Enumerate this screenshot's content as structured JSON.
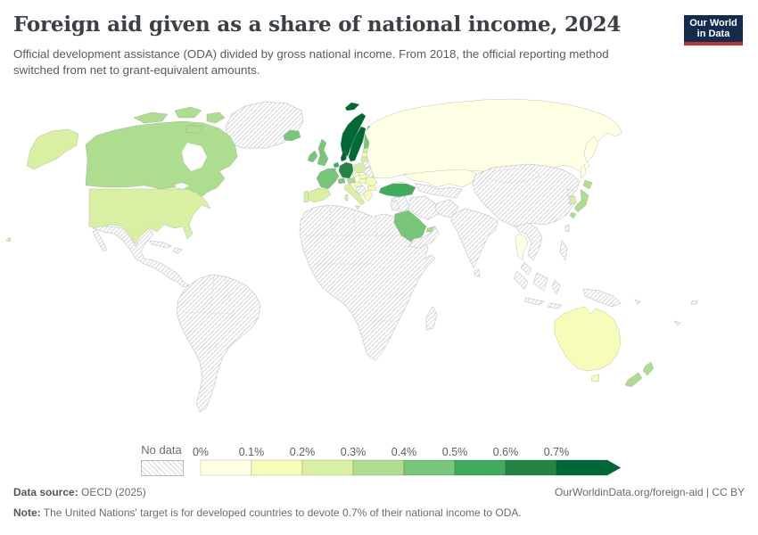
{
  "header": {
    "title": "Foreign aid given as a share of national income, 2024",
    "subtitle": "Official development assistance (ODA) divided by gross national income. From 2018, the official reporting method switched from net to grant-equivalent amounts.",
    "logo": {
      "line1": "Our World",
      "line2": "in Data"
    }
  },
  "legend": {
    "no_data_label": "No data",
    "tick_labels": [
      "0%",
      "0.1%",
      "0.2%",
      "0.3%",
      "0.4%",
      "0.5%",
      "0.6%",
      "0.7%"
    ],
    "colors": [
      "#ffffe5",
      "#f7fcb9",
      "#d9f0a3",
      "#addd8e",
      "#78c679",
      "#41ab5d",
      "#238443",
      "#006837"
    ],
    "bin_labels": [
      "0-0.1%",
      "0.1-0.2%",
      "0.2-0.3%",
      "0.3-0.4%",
      "0.4-0.5%",
      "0.5-0.6%",
      "0.6-0.7%",
      "0.7%+"
    ]
  },
  "map": {
    "regions": [
      {
        "id": "russia",
        "name": "Russia",
        "bin": 0
      },
      {
        "id": "kazakhstan",
        "name": "Kazakhstan",
        "bin": 0
      },
      {
        "id": "thailand",
        "name": "Thailand",
        "bin": 0
      },
      {
        "id": "australia",
        "name": "Australia",
        "bin": 1
      },
      {
        "id": "czechia",
        "name": "Czechia",
        "bin": 1
      },
      {
        "id": "slovakia",
        "name": "Slovakia",
        "bin": 1
      },
      {
        "id": "hungary",
        "name": "Hungary",
        "bin": 1
      },
      {
        "id": "croatia-slovenia",
        "name": "Croatia/Slovenia",
        "bin": 1
      },
      {
        "id": "romania",
        "name": "Romania",
        "bin": 1
      },
      {
        "id": "bulgaria",
        "name": "Bulgaria",
        "bin": 1
      },
      {
        "id": "greece",
        "name": "Greece",
        "bin": 1
      },
      {
        "id": "latvia",
        "name": "Latvia",
        "bin": 1
      },
      {
        "id": "usa",
        "name": "United States",
        "bin": 2
      },
      {
        "id": "spain",
        "name": "Spain",
        "bin": 2
      },
      {
        "id": "portugal",
        "name": "Portugal",
        "bin": 2
      },
      {
        "id": "italy",
        "name": "Italy",
        "bin": 2
      },
      {
        "id": "poland",
        "name": "Poland",
        "bin": 2
      },
      {
        "id": "south-korea",
        "name": "South Korea",
        "bin": 2
      },
      {
        "id": "estonia",
        "name": "Estonia",
        "bin": 2
      },
      {
        "id": "lithuania",
        "name": "Lithuania",
        "bin": 2
      },
      {
        "id": "canada",
        "name": "Canada",
        "bin": 3
      },
      {
        "id": "japan",
        "name": "Japan",
        "bin": 3
      },
      {
        "id": "new-zealand",
        "name": "New Zealand",
        "bin": 3
      },
      {
        "id": "austria",
        "name": "Austria",
        "bin": 3
      },
      {
        "id": "uae",
        "name": "United Arab Emirates",
        "bin": 3
      },
      {
        "id": "france",
        "name": "France",
        "bin": 4
      },
      {
        "id": "united-kingdom",
        "name": "United Kingdom",
        "bin": 4
      },
      {
        "id": "ireland",
        "name": "Ireland",
        "bin": 4
      },
      {
        "id": "iceland",
        "name": "Iceland",
        "bin": 4
      },
      {
        "id": "finland",
        "name": "Finland",
        "bin": 4
      },
      {
        "id": "belgium",
        "name": "Belgium",
        "bin": 4
      },
      {
        "id": "switzerland",
        "name": "Switzerland",
        "bin": 4
      },
      {
        "id": "saudi-arabia",
        "name": "Saudi Arabia",
        "bin": 4
      },
      {
        "id": "turkey",
        "name": "Turkey",
        "bin": 5
      },
      {
        "id": "netherlands",
        "name": "Netherlands",
        "bin": 5
      },
      {
        "id": "germany",
        "name": "Germany",
        "bin": 6
      },
      {
        "id": "norway",
        "name": "Norway",
        "bin": 7
      },
      {
        "id": "sweden",
        "name": "Sweden",
        "bin": 7
      },
      {
        "id": "denmark",
        "name": "Denmark",
        "bin": 7
      },
      {
        "id": "greenland",
        "name": "Greenland",
        "bin": null
      },
      {
        "id": "mexico-central-america",
        "name": "Mexico & Central America",
        "bin": null
      },
      {
        "id": "caribbean",
        "name": "Caribbean",
        "bin": null
      },
      {
        "id": "south-america",
        "name": "South America",
        "bin": null
      },
      {
        "id": "africa",
        "name": "Africa",
        "bin": null
      },
      {
        "id": "madagascar",
        "name": "Madagascar",
        "bin": null
      },
      {
        "id": "belarus",
        "name": "Belarus",
        "bin": null
      },
      {
        "id": "ukraine",
        "name": "Ukraine",
        "bin": null
      },
      {
        "id": "balkans",
        "name": "Balkans",
        "bin": null
      },
      {
        "id": "central-asia",
        "name": "Central Asia",
        "bin": null
      },
      {
        "id": "caucasus",
        "name": "Caucasus",
        "bin": null
      },
      {
        "id": "syria-iraq",
        "name": "Syria/Iraq",
        "bin": null
      },
      {
        "id": "iran",
        "name": "Iran",
        "bin": null
      },
      {
        "id": "afghanistan-pakistan",
        "name": "Afghanistan/Pakistan",
        "bin": null
      },
      {
        "id": "jordan-israel",
        "name": "Jordan/Israel",
        "bin": null
      },
      {
        "id": "oman-yemen",
        "name": "Oman/Yemen",
        "bin": null
      },
      {
        "id": "india",
        "name": "India",
        "bin": null
      },
      {
        "id": "sri-lanka",
        "name": "Sri Lanka",
        "bin": null
      },
      {
        "id": "china-mongolia",
        "name": "China/Mongolia",
        "bin": null
      },
      {
        "id": "taiwan",
        "name": "Taiwan",
        "bin": null
      },
      {
        "id": "north-korea",
        "name": "North Korea",
        "bin": null
      },
      {
        "id": "se-asia",
        "name": "Mainland Southeast Asia",
        "bin": null
      },
      {
        "id": "malay-peninsula",
        "name": "Malaysia",
        "bin": null
      },
      {
        "id": "indonesia",
        "name": "Indonesia",
        "bin": null
      },
      {
        "id": "new-guinea",
        "name": "New Guinea",
        "bin": null
      },
      {
        "id": "philippines",
        "name": "Philippines",
        "bin": null
      },
      {
        "id": "pacific-islands",
        "name": "Pacific Islands",
        "bin": null
      }
    ]
  },
  "footer": {
    "source_label": "Data source:",
    "source_value": " OECD (2025)",
    "link": "OurWorldinData.org/foreign-aid | CC BY",
    "note_label": "Note:",
    "note_value": " The United Nations' target is for developed countries to devote 0.7% of their national income to ODA."
  }
}
